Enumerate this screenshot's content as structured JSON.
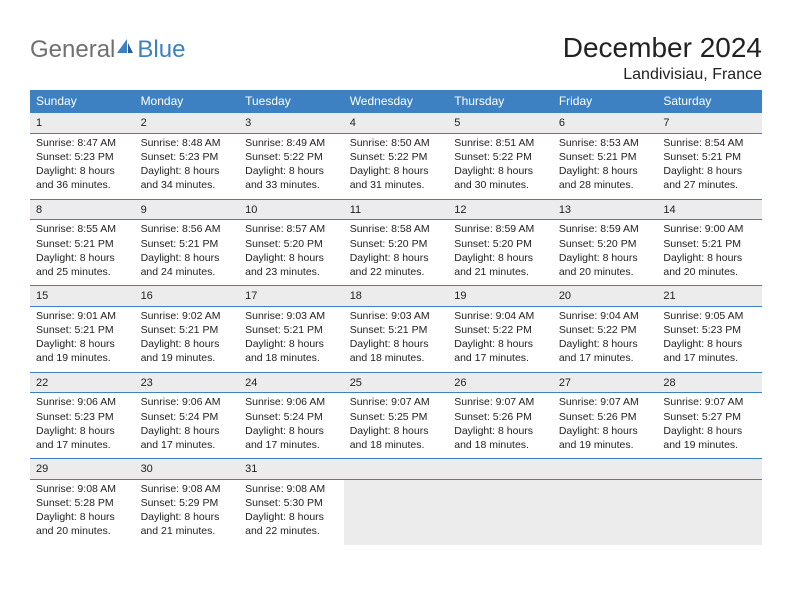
{
  "logo": {
    "word1": "General",
    "word2": "Blue"
  },
  "title": "December 2024",
  "location": "Landivisiau, France",
  "colors": {
    "accent": "#3d81c2",
    "headerText": "#ffffff",
    "dayBg": "#ececec",
    "text": "#222222",
    "logoGray": "#707070"
  },
  "weekdays": [
    "Sunday",
    "Monday",
    "Tuesday",
    "Wednesday",
    "Thursday",
    "Friday",
    "Saturday"
  ],
  "labelPrefixes": {
    "sunrise": "Sunrise: ",
    "sunset": "Sunset: ",
    "daylightLead": "Daylight: ",
    "hoursWord": " hours",
    "andWord": "and ",
    "minutesWord": " minutes."
  },
  "weeks": [
    [
      {
        "n": "1",
        "sr": "8:47 AM",
        "ss": "5:23 PM",
        "dh": "8",
        "dm": "36"
      },
      {
        "n": "2",
        "sr": "8:48 AM",
        "ss": "5:23 PM",
        "dh": "8",
        "dm": "34"
      },
      {
        "n": "3",
        "sr": "8:49 AM",
        "ss": "5:22 PM",
        "dh": "8",
        "dm": "33"
      },
      {
        "n": "4",
        "sr": "8:50 AM",
        "ss": "5:22 PM",
        "dh": "8",
        "dm": "31"
      },
      {
        "n": "5",
        "sr": "8:51 AM",
        "ss": "5:22 PM",
        "dh": "8",
        "dm": "30"
      },
      {
        "n": "6",
        "sr": "8:53 AM",
        "ss": "5:21 PM",
        "dh": "8",
        "dm": "28"
      },
      {
        "n": "7",
        "sr": "8:54 AM",
        "ss": "5:21 PM",
        "dh": "8",
        "dm": "27"
      }
    ],
    [
      {
        "n": "8",
        "sr": "8:55 AM",
        "ss": "5:21 PM",
        "dh": "8",
        "dm": "25"
      },
      {
        "n": "9",
        "sr": "8:56 AM",
        "ss": "5:21 PM",
        "dh": "8",
        "dm": "24"
      },
      {
        "n": "10",
        "sr": "8:57 AM",
        "ss": "5:20 PM",
        "dh": "8",
        "dm": "23"
      },
      {
        "n": "11",
        "sr": "8:58 AM",
        "ss": "5:20 PM",
        "dh": "8",
        "dm": "22"
      },
      {
        "n": "12",
        "sr": "8:59 AM",
        "ss": "5:20 PM",
        "dh": "8",
        "dm": "21"
      },
      {
        "n": "13",
        "sr": "8:59 AM",
        "ss": "5:20 PM",
        "dh": "8",
        "dm": "20"
      },
      {
        "n": "14",
        "sr": "9:00 AM",
        "ss": "5:21 PM",
        "dh": "8",
        "dm": "20"
      }
    ],
    [
      {
        "n": "15",
        "sr": "9:01 AM",
        "ss": "5:21 PM",
        "dh": "8",
        "dm": "19"
      },
      {
        "n": "16",
        "sr": "9:02 AM",
        "ss": "5:21 PM",
        "dh": "8",
        "dm": "19"
      },
      {
        "n": "17",
        "sr": "9:03 AM",
        "ss": "5:21 PM",
        "dh": "8",
        "dm": "18"
      },
      {
        "n": "18",
        "sr": "9:03 AM",
        "ss": "5:21 PM",
        "dh": "8",
        "dm": "18"
      },
      {
        "n": "19",
        "sr": "9:04 AM",
        "ss": "5:22 PM",
        "dh": "8",
        "dm": "17"
      },
      {
        "n": "20",
        "sr": "9:04 AM",
        "ss": "5:22 PM",
        "dh": "8",
        "dm": "17"
      },
      {
        "n": "21",
        "sr": "9:05 AM",
        "ss": "5:23 PM",
        "dh": "8",
        "dm": "17"
      }
    ],
    [
      {
        "n": "22",
        "sr": "9:06 AM",
        "ss": "5:23 PM",
        "dh": "8",
        "dm": "17"
      },
      {
        "n": "23",
        "sr": "9:06 AM",
        "ss": "5:24 PM",
        "dh": "8",
        "dm": "17"
      },
      {
        "n": "24",
        "sr": "9:06 AM",
        "ss": "5:24 PM",
        "dh": "8",
        "dm": "17"
      },
      {
        "n": "25",
        "sr": "9:07 AM",
        "ss": "5:25 PM",
        "dh": "8",
        "dm": "18"
      },
      {
        "n": "26",
        "sr": "9:07 AM",
        "ss": "5:26 PM",
        "dh": "8",
        "dm": "18"
      },
      {
        "n": "27",
        "sr": "9:07 AM",
        "ss": "5:26 PM",
        "dh": "8",
        "dm": "19"
      },
      {
        "n": "28",
        "sr": "9:07 AM",
        "ss": "5:27 PM",
        "dh": "8",
        "dm": "19"
      }
    ],
    [
      {
        "n": "29",
        "sr": "9:08 AM",
        "ss": "5:28 PM",
        "dh": "8",
        "dm": "20"
      },
      {
        "n": "30",
        "sr": "9:08 AM",
        "ss": "5:29 PM",
        "dh": "8",
        "dm": "21"
      },
      {
        "n": "31",
        "sr": "9:08 AM",
        "ss": "5:30 PM",
        "dh": "8",
        "dm": "22"
      },
      null,
      null,
      null,
      null
    ]
  ]
}
